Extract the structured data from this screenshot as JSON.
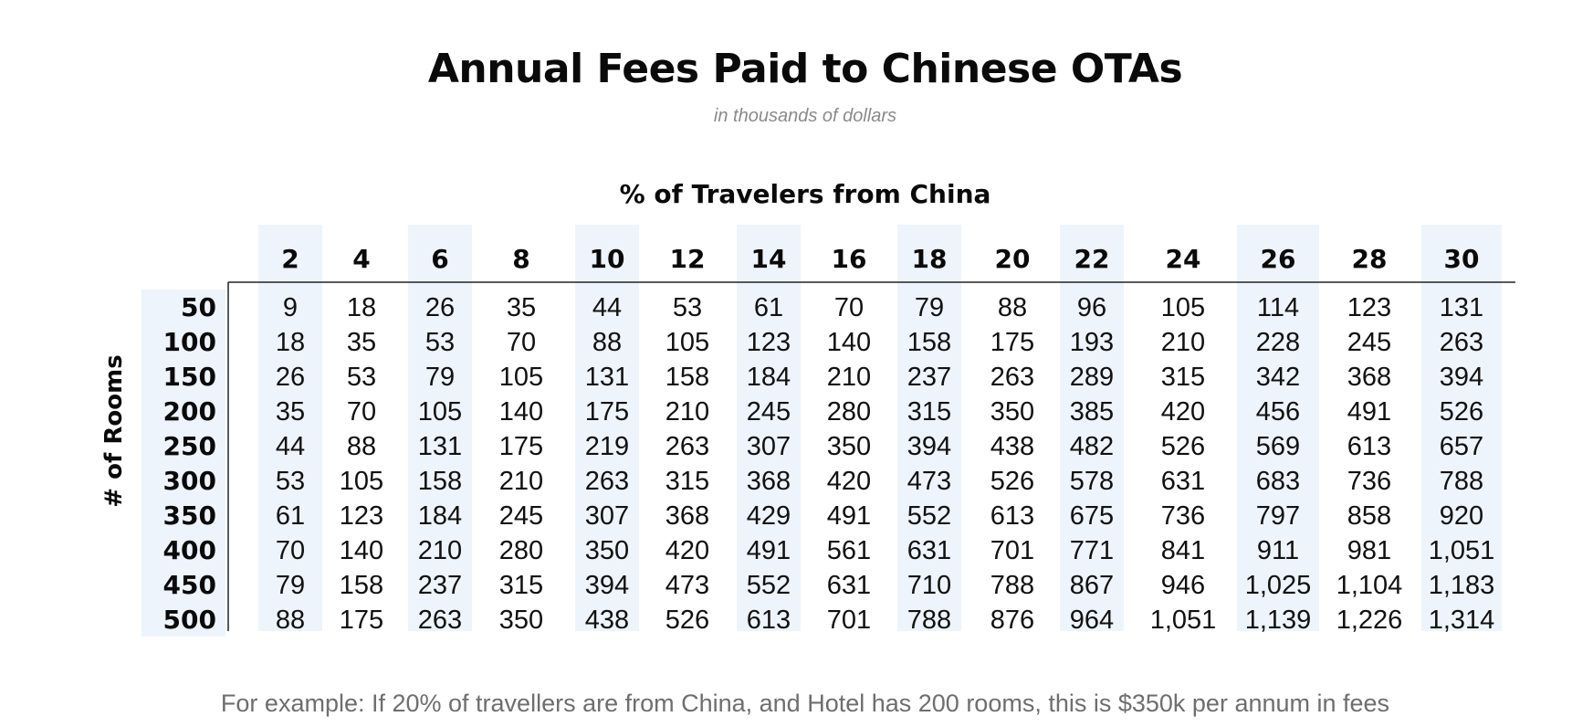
{
  "title": "Annual Fees Paid to Chinese OTAs",
  "subtitle": "in thousands of dollars",
  "footnote": "For example: If 20% of travellers are from China, and Hotel has 200 rooms, this is $350k per annum in fees",
  "colors": {
    "band_fill": "#eef4fb",
    "rule": "#222222"
  },
  "chart_data": {
    "type": "table",
    "title": "Annual Fees Paid to Chinese OTAs",
    "subtitle": "in thousands of dollars",
    "xlabel": "% of Travelers from China",
    "ylabel": "# of Rooms",
    "columns": [
      "2",
      "4",
      "6",
      "8",
      "10",
      "12",
      "14",
      "16",
      "18",
      "20",
      "22",
      "24",
      "26",
      "28",
      "30"
    ],
    "rows": [
      "50",
      "100",
      "150",
      "200",
      "250",
      "300",
      "350",
      "400",
      "450",
      "500"
    ],
    "values": [
      [
        "9",
        "18",
        "26",
        "35",
        "44",
        "53",
        "61",
        "70",
        "79",
        "88",
        "96",
        "105",
        "114",
        "123",
        "131"
      ],
      [
        "18",
        "35",
        "53",
        "70",
        "88",
        "105",
        "123",
        "140",
        "158",
        "175",
        "193",
        "210",
        "228",
        "245",
        "263"
      ],
      [
        "26",
        "53",
        "79",
        "105",
        "131",
        "158",
        "184",
        "210",
        "237",
        "263",
        "289",
        "315",
        "342",
        "368",
        "394"
      ],
      [
        "35",
        "70",
        "105",
        "140",
        "175",
        "210",
        "245",
        "280",
        "315",
        "350",
        "385",
        "420",
        "456",
        "491",
        "526"
      ],
      [
        "44",
        "88",
        "131",
        "175",
        "219",
        "263",
        "307",
        "350",
        "394",
        "438",
        "482",
        "526",
        "569",
        "613",
        "657"
      ],
      [
        "53",
        "105",
        "158",
        "210",
        "263",
        "315",
        "368",
        "420",
        "473",
        "526",
        "578",
        "631",
        "683",
        "736",
        "788"
      ],
      [
        "61",
        "123",
        "184",
        "245",
        "307",
        "368",
        "429",
        "491",
        "552",
        "613",
        "675",
        "736",
        "797",
        "858",
        "920"
      ],
      [
        "70",
        "140",
        "210",
        "280",
        "350",
        "420",
        "491",
        "561",
        "631",
        "701",
        "771",
        "841",
        "911",
        "981",
        "1,051"
      ],
      [
        "79",
        "158",
        "237",
        "315",
        "394",
        "473",
        "552",
        "631",
        "710",
        "788",
        "867",
        "946",
        "1,025",
        "1,104",
        "1,183"
      ],
      [
        "88",
        "175",
        "263",
        "350",
        "438",
        "526",
        "613",
        "701",
        "788",
        "876",
        "964",
        "1,051",
        "1,139",
        "1,226",
        "1,314"
      ]
    ]
  }
}
